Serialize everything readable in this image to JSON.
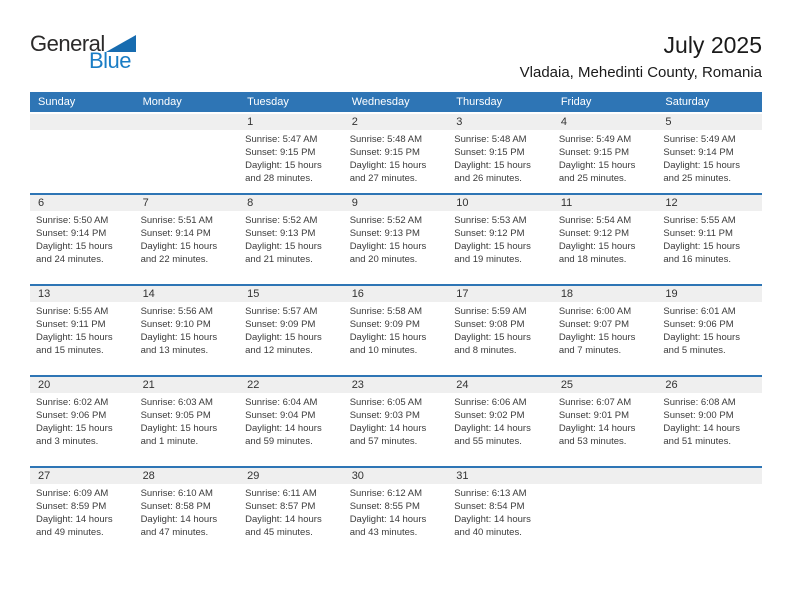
{
  "logo": {
    "text_top": "General",
    "text_bottom": "Blue",
    "triangle_icon": "blue-right-triangle"
  },
  "header": {
    "title": "July 2025",
    "subtitle": "Vladaia, Mehedinti County, Romania"
  },
  "weekday_headers": [
    "Sunday",
    "Monday",
    "Tuesday",
    "Wednesday",
    "Thursday",
    "Friday",
    "Saturday"
  ],
  "labels": {
    "sunrise": "Sunrise:",
    "sunset": "Sunset:",
    "daylight": "Daylight:"
  },
  "colors": {
    "header_bar": "#2E75B5",
    "row_divider": "#2E75B5",
    "day_band": "#EFEFEF",
    "text": "#3B3B3B",
    "logo_blue": "#1A7DC5",
    "triangle_blue": "#176CB0"
  },
  "weeks": [
    [
      null,
      null,
      {
        "day": "1",
        "sunrise": "5:47 AM",
        "sunset": "9:15 PM",
        "daylight1": "15 hours",
        "daylight2": "and 28 minutes."
      },
      {
        "day": "2",
        "sunrise": "5:48 AM",
        "sunset": "9:15 PM",
        "daylight1": "15 hours",
        "daylight2": "and 27 minutes."
      },
      {
        "day": "3",
        "sunrise": "5:48 AM",
        "sunset": "9:15 PM",
        "daylight1": "15 hours",
        "daylight2": "and 26 minutes."
      },
      {
        "day": "4",
        "sunrise": "5:49 AM",
        "sunset": "9:15 PM",
        "daylight1": "15 hours",
        "daylight2": "and 25 minutes."
      },
      {
        "day": "5",
        "sunrise": "5:49 AM",
        "sunset": "9:14 PM",
        "daylight1": "15 hours",
        "daylight2": "and 25 minutes."
      }
    ],
    [
      {
        "day": "6",
        "sunrise": "5:50 AM",
        "sunset": "9:14 PM",
        "daylight1": "15 hours",
        "daylight2": "and 24 minutes."
      },
      {
        "day": "7",
        "sunrise": "5:51 AM",
        "sunset": "9:14 PM",
        "daylight1": "15 hours",
        "daylight2": "and 22 minutes."
      },
      {
        "day": "8",
        "sunrise": "5:52 AM",
        "sunset": "9:13 PM",
        "daylight1": "15 hours",
        "daylight2": "and 21 minutes."
      },
      {
        "day": "9",
        "sunrise": "5:52 AM",
        "sunset": "9:13 PM",
        "daylight1": "15 hours",
        "daylight2": "and 20 minutes."
      },
      {
        "day": "10",
        "sunrise": "5:53 AM",
        "sunset": "9:12 PM",
        "daylight1": "15 hours",
        "daylight2": "and 19 minutes."
      },
      {
        "day": "11",
        "sunrise": "5:54 AM",
        "sunset": "9:12 PM",
        "daylight1": "15 hours",
        "daylight2": "and 18 minutes."
      },
      {
        "day": "12",
        "sunrise": "5:55 AM",
        "sunset": "9:11 PM",
        "daylight1": "15 hours",
        "daylight2": "and 16 minutes."
      }
    ],
    [
      {
        "day": "13",
        "sunrise": "5:55 AM",
        "sunset": "9:11 PM",
        "daylight1": "15 hours",
        "daylight2": "and 15 minutes."
      },
      {
        "day": "14",
        "sunrise": "5:56 AM",
        "sunset": "9:10 PM",
        "daylight1": "15 hours",
        "daylight2": "and 13 minutes."
      },
      {
        "day": "15",
        "sunrise": "5:57 AM",
        "sunset": "9:09 PM",
        "daylight1": "15 hours",
        "daylight2": "and 12 minutes."
      },
      {
        "day": "16",
        "sunrise": "5:58 AM",
        "sunset": "9:09 PM",
        "daylight1": "15 hours",
        "daylight2": "and 10 minutes."
      },
      {
        "day": "17",
        "sunrise": "5:59 AM",
        "sunset": "9:08 PM",
        "daylight1": "15 hours",
        "daylight2": "and 8 minutes."
      },
      {
        "day": "18",
        "sunrise": "6:00 AM",
        "sunset": "9:07 PM",
        "daylight1": "15 hours",
        "daylight2": "and 7 minutes."
      },
      {
        "day": "19",
        "sunrise": "6:01 AM",
        "sunset": "9:06 PM",
        "daylight1": "15 hours",
        "daylight2": "and 5 minutes."
      }
    ],
    [
      {
        "day": "20",
        "sunrise": "6:02 AM",
        "sunset": "9:06 PM",
        "daylight1": "15 hours",
        "daylight2": "and 3 minutes."
      },
      {
        "day": "21",
        "sunrise": "6:03 AM",
        "sunset": "9:05 PM",
        "daylight1": "15 hours",
        "daylight2": "and 1 minute."
      },
      {
        "day": "22",
        "sunrise": "6:04 AM",
        "sunset": "9:04 PM",
        "daylight1": "14 hours",
        "daylight2": "and 59 minutes."
      },
      {
        "day": "23",
        "sunrise": "6:05 AM",
        "sunset": "9:03 PM",
        "daylight1": "14 hours",
        "daylight2": "and 57 minutes."
      },
      {
        "day": "24",
        "sunrise": "6:06 AM",
        "sunset": "9:02 PM",
        "daylight1": "14 hours",
        "daylight2": "and 55 minutes."
      },
      {
        "day": "25",
        "sunrise": "6:07 AM",
        "sunset": "9:01 PM",
        "daylight1": "14 hours",
        "daylight2": "and 53 minutes."
      },
      {
        "day": "26",
        "sunrise": "6:08 AM",
        "sunset": "9:00 PM",
        "daylight1": "14 hours",
        "daylight2": "and 51 minutes."
      }
    ],
    [
      {
        "day": "27",
        "sunrise": "6:09 AM",
        "sunset": "8:59 PM",
        "daylight1": "14 hours",
        "daylight2": "and 49 minutes."
      },
      {
        "day": "28",
        "sunrise": "6:10 AM",
        "sunset": "8:58 PM",
        "daylight1": "14 hours",
        "daylight2": "and 47 minutes."
      },
      {
        "day": "29",
        "sunrise": "6:11 AM",
        "sunset": "8:57 PM",
        "daylight1": "14 hours",
        "daylight2": "and 45 minutes."
      },
      {
        "day": "30",
        "sunrise": "6:12 AM",
        "sunset": "8:55 PM",
        "daylight1": "14 hours",
        "daylight2": "and 43 minutes."
      },
      {
        "day": "31",
        "sunrise": "6:13 AM",
        "sunset": "8:54 PM",
        "daylight1": "14 hours",
        "daylight2": "and 40 minutes."
      },
      null,
      null
    ]
  ]
}
